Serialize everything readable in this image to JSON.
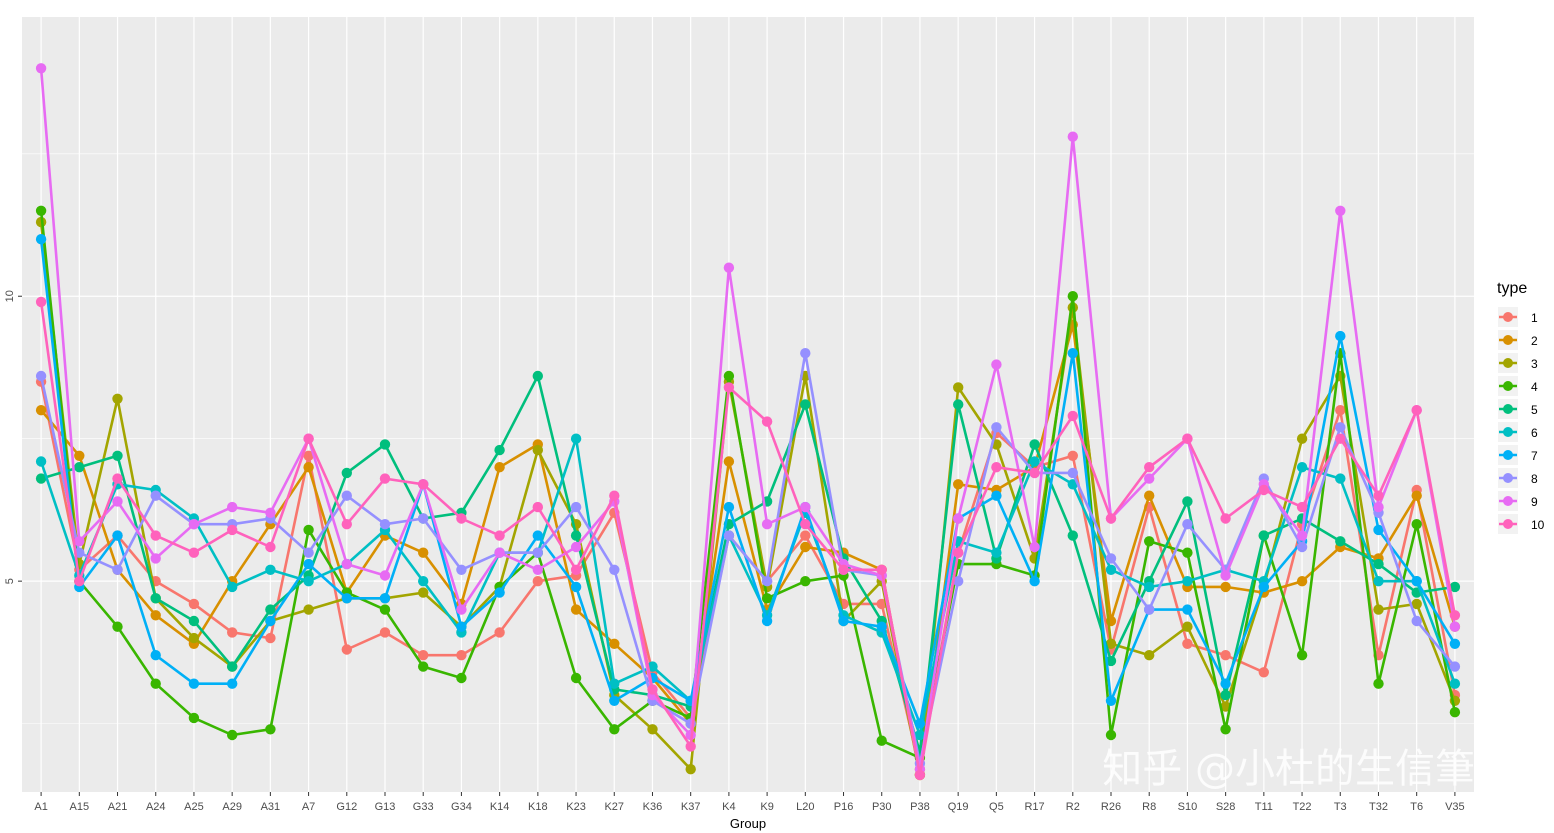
{
  "watermark": "知乎 @小杜的生信筆記",
  "colors": {
    "panel_bg": "#EBEBEB",
    "grid": "#FFFFFF",
    "series": [
      "#F8766D",
      "#D89000",
      "#A3A500",
      "#39B600",
      "#00BF7D",
      "#00BFC4",
      "#00B0F6",
      "#9590FF",
      "#E76BF3",
      "#FF62BC"
    ]
  },
  "chart_data": {
    "type": "line",
    "xlabel": "Group",
    "ylabel": "",
    "ylim": [
      1.3,
      14.9
    ],
    "y_ticks": [
      5,
      10
    ],
    "grid": true,
    "legend": {
      "title": "type",
      "position": "right"
    },
    "categories": [
      "A1",
      "A15",
      "A21",
      "A24",
      "A25",
      "A29",
      "A31",
      "A7",
      "G12",
      "G13",
      "G33",
      "G34",
      "K14",
      "K18",
      "K23",
      "K27",
      "K36",
      "K37",
      "K4",
      "K9",
      "L20",
      "P16",
      "P30",
      "P38",
      "Q19",
      "Q5",
      "R17",
      "R2",
      "R26",
      "R8",
      "S10",
      "S28",
      "T11",
      "T22",
      "T3",
      "T32",
      "T6",
      "V35"
    ],
    "series": [
      {
        "name": "1",
        "values": [
          8.5,
          5.2,
          5.8,
          5.0,
          4.6,
          4.1,
          4.0,
          7.2,
          3.8,
          4.1,
          3.7,
          3.7,
          4.1,
          5.0,
          5.1,
          6.2,
          3.4,
          2.6,
          5.8,
          5.0,
          5.8,
          4.6,
          4.6,
          1.7,
          5.5,
          7.6,
          7.0,
          7.2,
          3.8,
          6.3,
          3.9,
          3.7,
          3.4,
          6.0,
          8.0,
          3.7,
          6.6,
          3.0
        ]
      },
      {
        "name": "2",
        "values": [
          8.0,
          7.2,
          5.2,
          4.4,
          3.9,
          5.0,
          6.0,
          7.0,
          4.8,
          5.8,
          5.5,
          4.6,
          7.0,
          7.4,
          4.5,
          3.9,
          3.3,
          2.5,
          7.1,
          4.5,
          5.6,
          5.5,
          5.2,
          1.6,
          6.7,
          6.6,
          7.0,
          9.5,
          4.3,
          6.5,
          4.9,
          4.9,
          4.8,
          5.0,
          5.6,
          5.4,
          6.5,
          4.2
        ]
      },
      {
        "name": "3",
        "values": [
          11.3,
          5.3,
          8.2,
          4.7,
          4.0,
          3.5,
          4.3,
          4.5,
          4.7,
          4.7,
          4.8,
          4.2,
          4.9,
          7.3,
          6.0,
          3.0,
          2.4,
          1.7,
          8.5,
          4.9,
          8.6,
          4.3,
          5.0,
          1.6,
          8.4,
          7.4,
          5.4,
          9.8,
          3.9,
          3.7,
          4.2,
          2.8,
          4.9,
          7.5,
          8.6,
          4.5,
          4.6,
          2.9
        ]
      },
      {
        "name": "4",
        "values": [
          11.5,
          5.0,
          4.2,
          3.2,
          2.6,
          2.3,
          2.4,
          5.9,
          4.8,
          4.5,
          3.5,
          3.3,
          4.9,
          5.5,
          3.3,
          2.4,
          2.9,
          2.6,
          8.6,
          4.7,
          5.0,
          5.1,
          2.2,
          1.9,
          5.3,
          5.3,
          5.1,
          10.0,
          2.3,
          5.7,
          5.5,
          2.4,
          5.8,
          3.7,
          9.0,
          3.2,
          6.0,
          2.7
        ]
      },
      {
        "name": "5",
        "values": [
          6.8,
          7.0,
          7.2,
          4.7,
          4.3,
          3.5,
          4.5,
          5.1,
          6.9,
          7.4,
          6.1,
          6.2,
          7.3,
          8.6,
          5.8,
          3.1,
          3.0,
          2.8,
          6.0,
          6.4,
          8.1,
          5.4,
          4.3,
          2.0,
          8.1,
          5.4,
          7.4,
          5.8,
          3.6,
          5.0,
          6.4,
          3.0,
          5.8,
          6.1,
          5.7,
          5.3,
          4.8,
          4.9
        ]
      },
      {
        "name": "6",
        "values": [
          7.1,
          5.1,
          6.7,
          6.6,
          6.1,
          4.9,
          5.2,
          5.0,
          5.3,
          5.9,
          5.0,
          4.1,
          5.5,
          5.5,
          7.5,
          3.2,
          3.5,
          2.9,
          5.8,
          4.4,
          6.2,
          4.4,
          4.1,
          2.3,
          5.7,
          5.5,
          7.1,
          6.7,
          5.2,
          4.9,
          5.0,
          5.2,
          5.0,
          7.0,
          6.8,
          5.0,
          5.0,
          3.2
        ]
      },
      {
        "name": "7",
        "values": [
          11.0,
          4.9,
          5.8,
          3.7,
          3.2,
          3.2,
          4.3,
          5.3,
          4.7,
          4.7,
          6.7,
          4.2,
          4.8,
          5.8,
          4.9,
          2.9,
          3.3,
          2.9,
          6.3,
          4.3,
          6.3,
          4.3,
          4.2,
          2.5,
          6.1,
          6.5,
          5.0,
          9.0,
          2.9,
          4.5,
          4.5,
          3.2,
          4.9,
          5.7,
          9.3,
          5.9,
          5.0,
          3.9
        ]
      },
      {
        "name": "8",
        "values": [
          8.6,
          5.5,
          5.2,
          6.5,
          6.0,
          6.0,
          6.1,
          5.5,
          6.5,
          6.0,
          6.1,
          5.2,
          5.5,
          5.5,
          6.3,
          5.2,
          2.9,
          2.5,
          5.8,
          5.0,
          9.0,
          5.2,
          5.1,
          1.8,
          5.0,
          7.7,
          6.9,
          6.9,
          5.4,
          4.5,
          6.0,
          5.2,
          6.8,
          5.6,
          7.7,
          6.2,
          4.3,
          3.5
        ]
      },
      {
        "name": "9",
        "values": [
          14.0,
          5.7,
          6.4,
          5.4,
          6.0,
          6.3,
          6.2,
          7.5,
          5.3,
          5.1,
          6.7,
          4.5,
          5.5,
          5.2,
          5.6,
          6.4,
          3.0,
          2.3,
          10.5,
          6.0,
          6.3,
          5.3,
          5.1,
          1.7,
          6.1,
          8.8,
          5.6,
          12.8,
          6.1,
          6.8,
          7.5,
          5.1,
          6.7,
          5.8,
          11.5,
          6.3,
          8.0,
          4.2
        ]
      },
      {
        "name": "10",
        "values": [
          9.9,
          5.0,
          6.8,
          5.8,
          5.5,
          5.9,
          5.6,
          7.5,
          6.0,
          6.8,
          6.7,
          6.1,
          5.8,
          6.3,
          5.2,
          6.5,
          3.1,
          2.1,
          8.4,
          7.8,
          6.0,
          5.2,
          5.2,
          1.6,
          5.5,
          7.0,
          6.9,
          7.9,
          6.1,
          7.0,
          7.5,
          6.1,
          6.6,
          6.3,
          7.5,
          6.5,
          8.0,
          4.4
        ]
      }
    ]
  }
}
